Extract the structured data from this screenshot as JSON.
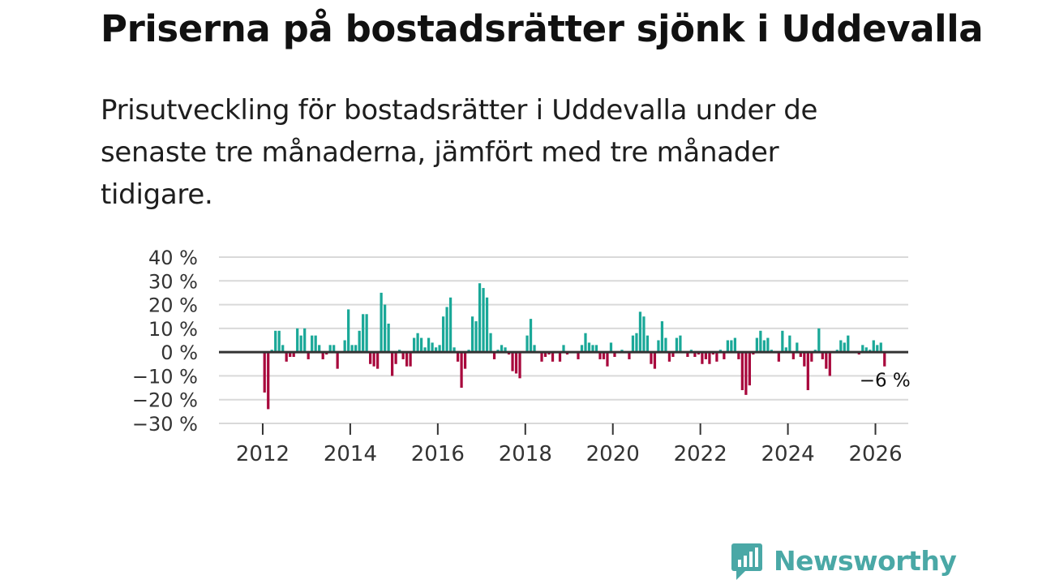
{
  "title": "Priserna på bostadsrätter sjönk i Uddevalla",
  "subtitle": "Prisutveckling för bostadsrätter i Uddevalla under de senaste tre månaderna, jämfört med tre månader tidigare.",
  "brand": {
    "name": "Newsworthy",
    "color": "#4aa8a6"
  },
  "colors": {
    "positive": "#1aa898",
    "negative": "#a8073c",
    "zero_line": "#333333",
    "grid": "#d9d9d9"
  },
  "chart_data": {
    "type": "bar",
    "title": "Priserna på bostadsrätter sjönk i Uddevalla",
    "xlabel": "",
    "ylabel": "",
    "unit": "%",
    "ylim": [
      -30,
      40
    ],
    "yticks": [
      {
        "value": 40,
        "label": "40 %"
      },
      {
        "value": 30,
        "label": "30 %"
      },
      {
        "value": 20,
        "label": "20 %"
      },
      {
        "value": 10,
        "label": "10 %"
      },
      {
        "value": 0,
        "label": "0 %"
      },
      {
        "value": -10,
        "label": "−10 %"
      },
      {
        "value": -20,
        "label": "−20 %"
      },
      {
        "value": -30,
        "label": "−30 %"
      }
    ],
    "xlim": [
      2011.0,
      2026.75
    ],
    "xticks": [
      {
        "value": 2012,
        "label": "2012"
      },
      {
        "value": 2014,
        "label": "2014"
      },
      {
        "value": 2016,
        "label": "2016"
      },
      {
        "value": 2018,
        "label": "2018"
      },
      {
        "value": 2020,
        "label": "2020"
      },
      {
        "value": 2022,
        "label": "2022"
      },
      {
        "value": 2024,
        "label": "2024"
      },
      {
        "value": 2026,
        "label": "2026"
      }
    ],
    "start": {
      "year": 2012,
      "month": 1
    },
    "end_label": "−6 %",
    "series": [
      {
        "name": "Prisutveckling",
        "values": [
          -17,
          -24,
          1,
          9,
          9,
          3,
          -4,
          -2,
          -2,
          10,
          7,
          10,
          -3,
          7,
          7,
          3,
          -3,
          -1,
          3,
          3,
          -7,
          0,
          5,
          18,
          3,
          3,
          9,
          16,
          16,
          -5,
          -6,
          -7,
          25,
          20,
          12,
          -10,
          -5,
          1,
          -3,
          -6,
          -6,
          6,
          8,
          6,
          2,
          6,
          4,
          2,
          3,
          15,
          19,
          23,
          2,
          -4,
          -15,
          -7,
          1,
          15,
          13,
          29,
          27,
          23,
          8,
          -3,
          1,
          3,
          2,
          -1,
          -8,
          -9,
          -11,
          0,
          7,
          14,
          3,
          0,
          -4,
          -2,
          -1,
          -4,
          0,
          -4,
          3,
          -1,
          0,
          0,
          -3,
          3,
          8,
          4,
          3,
          3,
          -3,
          -3,
          -6,
          4,
          -2,
          0,
          1,
          0,
          -3,
          7,
          8,
          17,
          15,
          7,
          -5,
          -7,
          5,
          13,
          6,
          -4,
          -2,
          6,
          7,
          0,
          -2,
          1,
          -2,
          -1,
          -5,
          -3,
          -5,
          -1,
          -4,
          1,
          -3,
          5,
          5,
          6,
          -3,
          -16,
          -18,
          -14,
          -1,
          6,
          9,
          5,
          6,
          1,
          0,
          -4,
          9,
          2,
          7,
          -3,
          4,
          -2,
          -6,
          -16,
          -4,
          1,
          10,
          -3,
          -7,
          -10,
          0,
          1,
          5,
          4,
          7,
          0,
          0,
          -1,
          3,
          2,
          1,
          5,
          3,
          4,
          -6
        ]
      }
    ]
  }
}
